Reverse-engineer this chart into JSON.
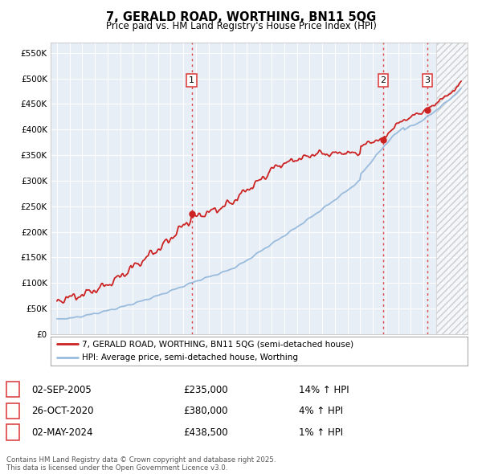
{
  "title": "7, GERALD ROAD, WORTHING, BN11 5QG",
  "subtitle": "Price paid vs. HM Land Registry's House Price Index (HPI)",
  "ylim": [
    0,
    570000
  ],
  "yticks": [
    0,
    50000,
    100000,
    150000,
    200000,
    250000,
    300000,
    350000,
    400000,
    450000,
    500000,
    550000
  ],
  "ytick_labels": [
    "£0",
    "£50K",
    "£100K",
    "£150K",
    "£200K",
    "£250K",
    "£300K",
    "£350K",
    "£400K",
    "£450K",
    "£500K",
    "£550K"
  ],
  "xlim_start": 1994.5,
  "xlim_end": 2027.5,
  "fig_bg_color": "#ffffff",
  "plot_bg_color": "#e8eef5",
  "property_color": "#cc2222",
  "hpi_color": "#99bbdd",
  "sale_points": [
    {
      "year": 2005.67,
      "price": 235000,
      "label": "1"
    },
    {
      "year": 2020.82,
      "price": 380000,
      "label": "2"
    },
    {
      "year": 2024.33,
      "price": 438500,
      "label": "3"
    }
  ],
  "vline_color": "#dd4444",
  "legend_property": "7, GERALD ROAD, WORTHING, BN11 5QG (semi-detached house)",
  "legend_hpi": "HPI: Average price, semi-detached house, Worthing",
  "table_entries": [
    {
      "num": "1",
      "date": "02-SEP-2005",
      "price": "£235,000",
      "change": "14% ↑ HPI"
    },
    {
      "num": "2",
      "date": "26-OCT-2020",
      "price": "£380,000",
      "change": "4% ↑ HPI"
    },
    {
      "num": "3",
      "date": "02-MAY-2024",
      "price": "£438,500",
      "change": "1% ↑ HPI"
    }
  ],
  "footer": "Contains HM Land Registry data © Crown copyright and database right 2025.\nThis data is licensed under the Open Government Licence v3.0."
}
